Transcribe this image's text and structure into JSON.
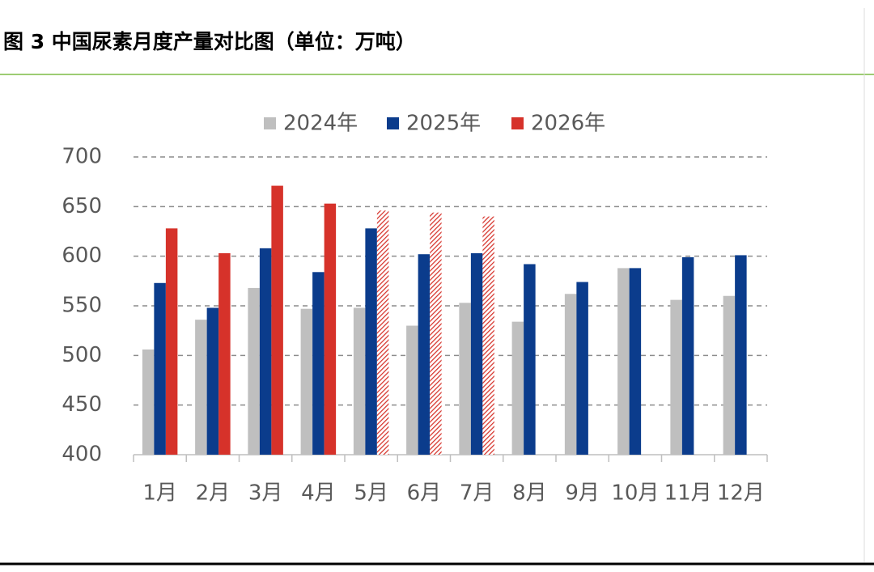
{
  "chart_data": {
    "type": "bar",
    "title": "图 3 中国尿素月度产量对比图（单位：万吨）",
    "categories": [
      "1月",
      "2月",
      "3月",
      "4月",
      "5月",
      "6月",
      "7月",
      "8月",
      "9月",
      "10月",
      "11月",
      "12月"
    ],
    "series": [
      {
        "name": "2024年",
        "color": "#bfbfbf",
        "values": [
          506,
          536,
          568,
          547,
          548,
          530,
          553,
          534,
          562,
          588,
          556,
          560
        ]
      },
      {
        "name": "2025年",
        "color": "#0b3c8c",
        "values": [
          573,
          548,
          608,
          584,
          628,
          602,
          603,
          592,
          574,
          588,
          599,
          601
        ]
      },
      {
        "name": "2026年",
        "color": "#d6322a",
        "values": [
          628,
          603,
          671,
          653,
          646,
          644,
          640,
          null,
          null,
          null,
          null,
          null
        ],
        "hatched": [
          false,
          false,
          false,
          false,
          true,
          true,
          true,
          false,
          false,
          false,
          false,
          false
        ]
      }
    ],
    "ylim": [
      400,
      700
    ],
    "yticks": [
      400,
      450,
      500,
      550,
      600,
      650,
      700
    ],
    "grid": true,
    "legend": "top"
  }
}
